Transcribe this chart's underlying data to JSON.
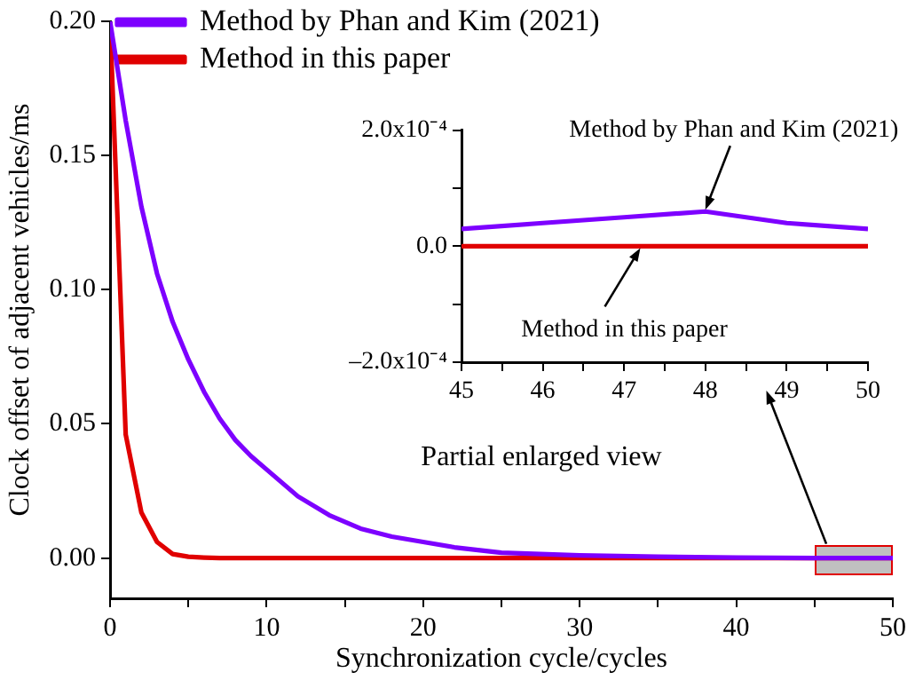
{
  "chart_data": [
    {
      "type": "line",
      "xlabel": "Synchronization cycle/cycles",
      "ylabel": "Clock offset of adjacent vehicles/ms",
      "xlim": [
        0,
        50
      ],
      "ylim": [
        -0.015,
        0.2
      ],
      "xticks": [
        0,
        {
          "value": 5,
          "label": null
        },
        10,
        {
          "value": 15,
          "label": null
        },
        20,
        {
          "value": 25,
          "label": null
        },
        30,
        {
          "value": 35,
          "label": null
        },
        40,
        {
          "value": 45,
          "label": null
        },
        50
      ],
      "yticks": [
        {
          "value": 0,
          "label": "0.00"
        },
        0.05,
        {
          "value": 0.1,
          "label": "0.10"
        },
        0.15,
        {
          "value": 0.2,
          "label": "0.20"
        }
      ],
      "legend": "top left",
      "marker": "none",
      "annotations": [
        "Partial enlarged view"
      ],
      "series": [
        {
          "name": "Method by Phan and Kim (2021)",
          "color": "#7d00ff",
          "x": [
            0,
            1,
            2,
            3,
            4,
            5,
            6,
            7,
            8,
            9,
            10,
            12,
            14,
            16,
            18,
            20,
            22,
            25,
            30,
            35,
            40,
            45,
            48,
            50
          ],
          "values": [
            0.2,
            0.163,
            0.131,
            0.106,
            0.088,
            0.074,
            0.062,
            0.052,
            0.044,
            0.038,
            0.033,
            0.023,
            0.016,
            0.011,
            0.008,
            0.006,
            0.004,
            0.002,
            0.001,
            0.0005,
            0.0002,
            0,
            0,
            0
          ]
        },
        {
          "name": "Method in this paper",
          "color": "#e00000",
          "x": [
            0,
            1,
            2,
            3,
            4,
            5,
            6,
            7,
            10,
            20,
            30,
            40,
            50
          ],
          "values": [
            0.2,
            0.046,
            0.017,
            0.006,
            0.0015,
            0.0005,
            0.0002,
            0,
            0,
            0,
            0,
            0,
            0
          ]
        }
      ]
    },
    {
      "type": "line",
      "xlim": [
        45,
        50
      ],
      "ylim": [
        -0.0002,
        0.0002
      ],
      "xticks": [
        45,
        {
          "value": 45.5,
          "label": null
        },
        46,
        {
          "value": 46.5,
          "label": null
        },
        47,
        {
          "value": 47.5,
          "label": null
        },
        48,
        {
          "value": 48.5,
          "label": null
        },
        49,
        {
          "value": 49.5,
          "label": null
        },
        50
      ],
      "yticks": [
        {
          "value": -0.0002,
          "label": "–2.0x10⁻⁴"
        },
        {
          "value": -0.0001,
          "label": null
        },
        {
          "value": 0,
          "label": "0.0"
        },
        {
          "value": 0.0001,
          "label": null
        },
        {
          "value": 0.0002,
          "label": "2.0x10⁻⁴"
        }
      ],
      "marker": "none",
      "annotations": [
        {
          "text": "Method by Phan and Kim (2021)",
          "x": 48,
          "y": 6e-05
        },
        {
          "text": "Method in this paper",
          "x": 47.2,
          "y": 0
        }
      ],
      "series": [
        {
          "color": "#7d00ff",
          "x": [
            45,
            46,
            47,
            48,
            49,
            50
          ],
          "values": [
            3e-05,
            4e-05,
            5e-05,
            6e-05,
            4e-05,
            3e-05
          ]
        },
        {
          "color": "#e00000",
          "x": [
            45,
            46,
            47,
            48,
            49,
            50
          ],
          "values": [
            0,
            0,
            0,
            0,
            0,
            0
          ]
        }
      ]
    }
  ]
}
